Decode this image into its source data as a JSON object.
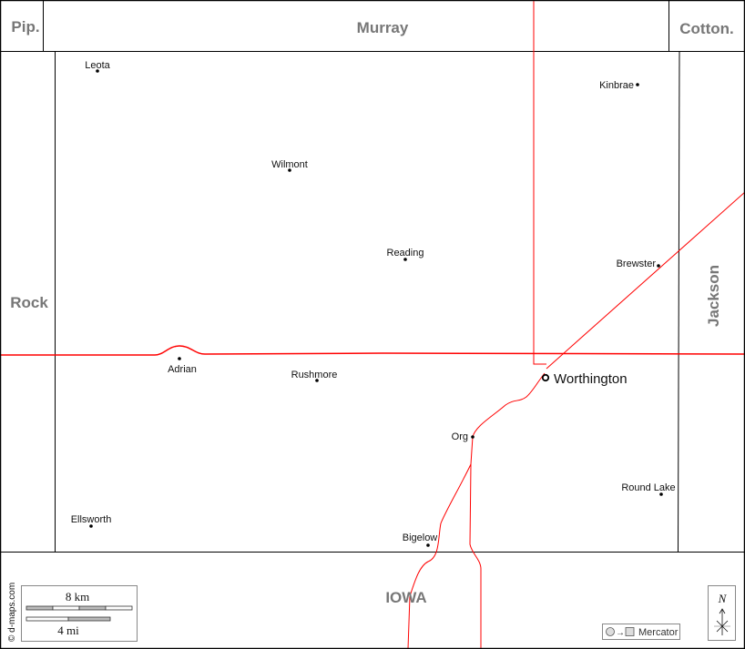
{
  "neighbors": {
    "pipestone": "Pip.",
    "murray": "Murray",
    "cottonwood": "Cotton.",
    "rock": "Rock",
    "jackson": "Jackson",
    "iowa": "IOWA"
  },
  "places": [
    {
      "name": "Leota"
    },
    {
      "name": "Kinbrae"
    },
    {
      "name": "Wilmont"
    },
    {
      "name": "Reading"
    },
    {
      "name": "Brewster"
    },
    {
      "name": "Adrian"
    },
    {
      "name": "Rushmore"
    },
    {
      "name": "Worthington",
      "seat": true
    },
    {
      "name": "Org"
    },
    {
      "name": "Round Lake"
    },
    {
      "name": "Ellsworth"
    },
    {
      "name": "Bigelow"
    }
  ],
  "scale": {
    "km_label": "8 km",
    "mi_label": "4 mi"
  },
  "credit": "© d-maps.com",
  "projection": {
    "label": "Mercator"
  },
  "compass": {
    "label": "N"
  },
  "colors": {
    "roads": "#ff0000",
    "borders": "#000000",
    "neighbor_text": "#777777"
  }
}
